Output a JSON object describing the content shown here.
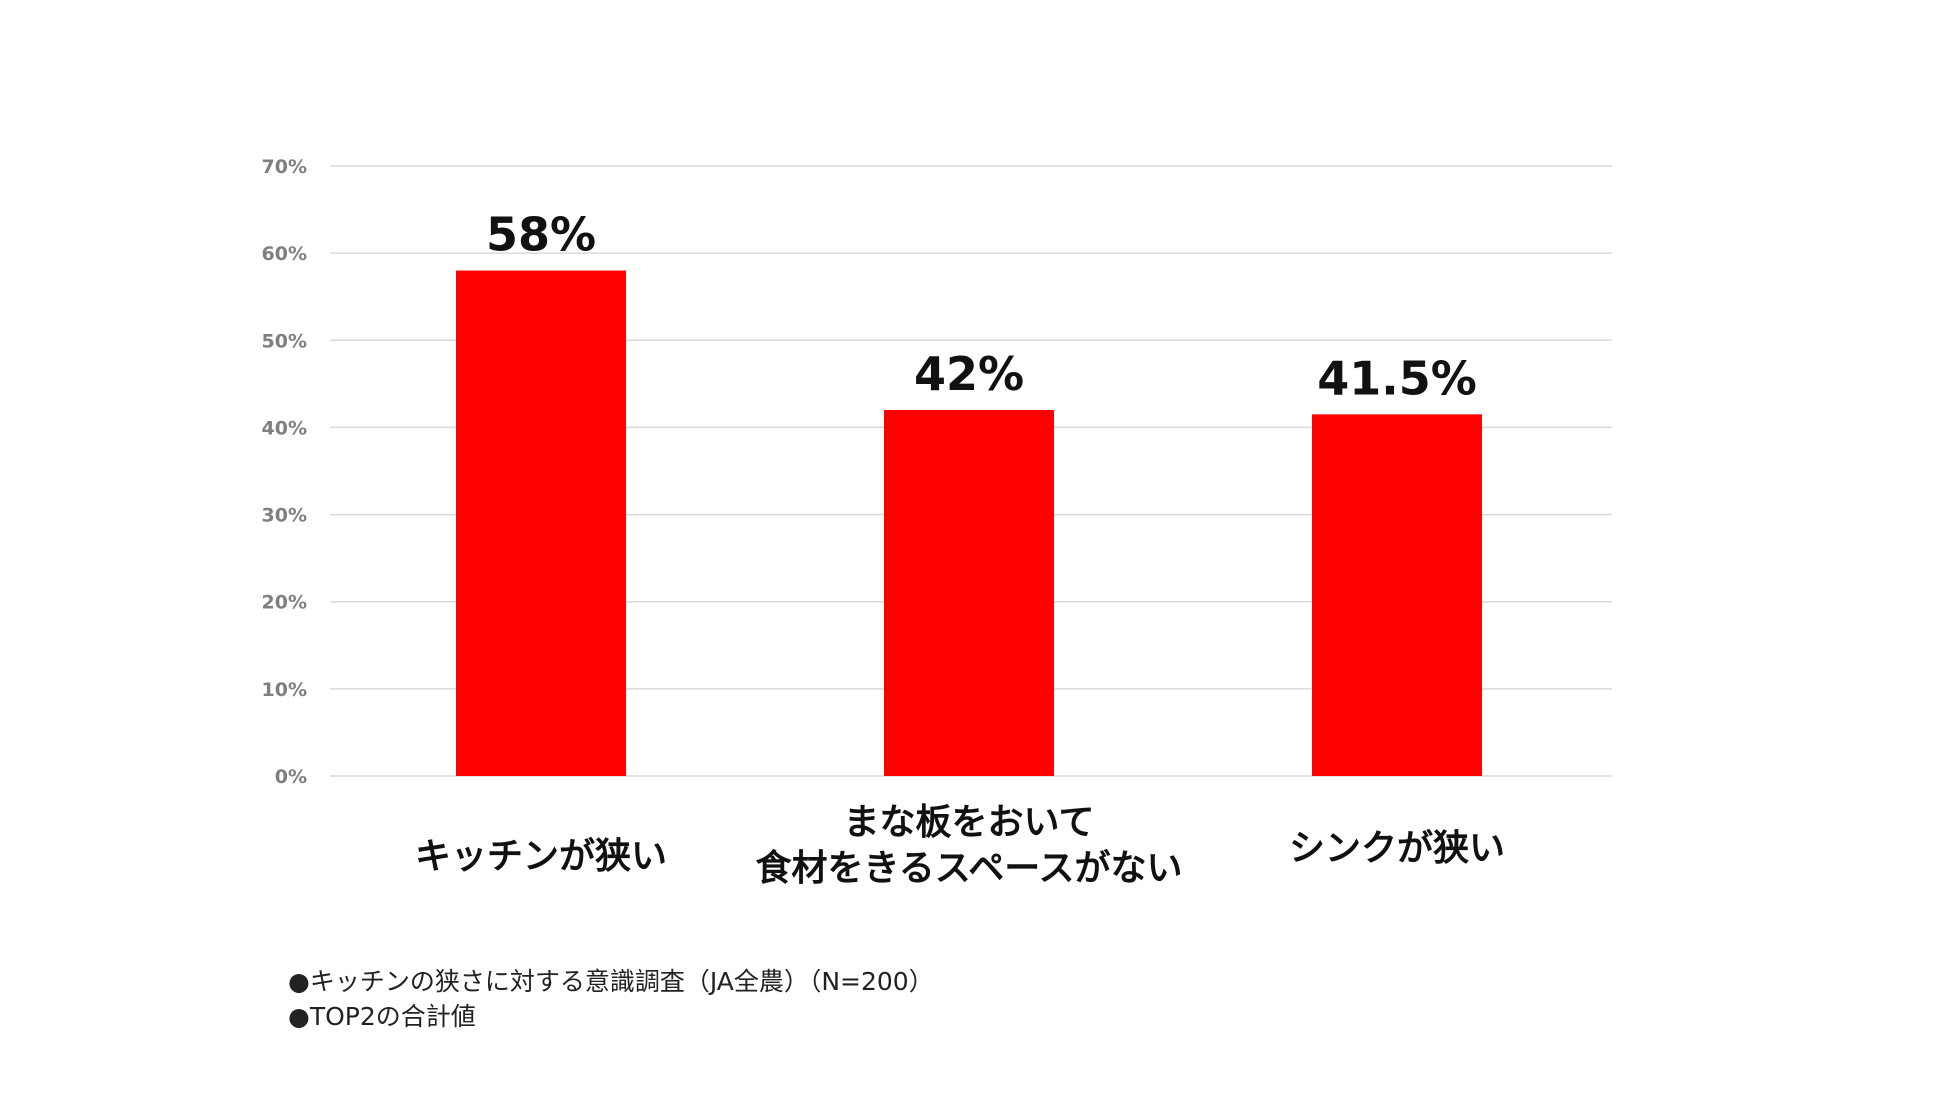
{
  "chart_data": {
    "type": "bar",
    "title": "",
    "xlabel": "",
    "ylabel": "",
    "categories": [
      [
        "キッチンが狭い"
      ],
      [
        "まな板をおいて",
        "食材をきるスペースがない"
      ],
      [
        "シンクが狭い"
      ]
    ],
    "values": [
      58,
      42,
      41.5
    ],
    "data_labels": [
      "58%",
      "42%",
      "41.5%"
    ],
    "ylim": [
      0,
      70
    ],
    "yticks": [
      0,
      10,
      20,
      30,
      40,
      50,
      60,
      70
    ],
    "ytick_labels": [
      "0%",
      "10%",
      "20%",
      "30%",
      "40%",
      "50%",
      "60%",
      "70%"
    ],
    "grid": true,
    "legend": "none",
    "colors": {
      "bar": "#ff0000",
      "grid": "#d9d9d9",
      "tick_text": "#7f7f7f",
      "label_text": "#111111"
    }
  },
  "footnotes": [
    "●キッチンの狭さに対する意識調査（JA全農）（N=200）",
    "●TOP2の合計値"
  ]
}
